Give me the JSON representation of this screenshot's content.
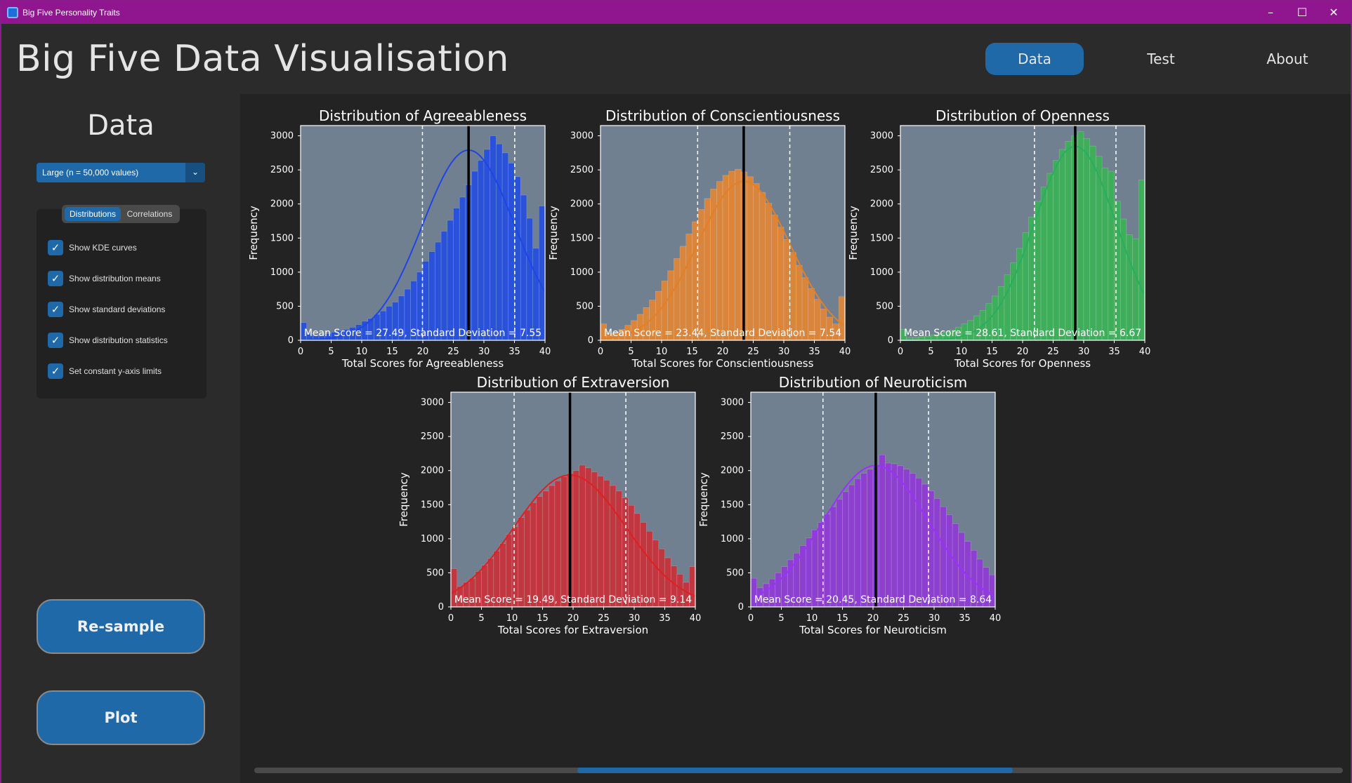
{
  "window": {
    "title": "Big Five Personality Traits",
    "minimize": "–",
    "maximize": "☐",
    "close": "✕"
  },
  "header": {
    "title": "Big Five Data Visualisation",
    "nav": [
      "Data",
      "Test",
      "About"
    ]
  },
  "sidebar": {
    "title": "Data",
    "sample_select": "Large  (n = 50,000 values)",
    "tabs": [
      "Distributions",
      "Correlations"
    ],
    "options": [
      {
        "label": "Show KDE curves",
        "checked": true
      },
      {
        "label": "Show distribution means",
        "checked": true
      },
      {
        "label": "Show standard deviations",
        "checked": true
      },
      {
        "label": "Show distribution statistics",
        "checked": true
      },
      {
        "label": "Set constant y-axis limits",
        "checked": true
      }
    ],
    "resample_label": "Re-sample",
    "plot_label": "Plot"
  },
  "colors": {
    "accent": "#1f69a8",
    "plot_bg": "#708090"
  },
  "chart_data": [
    {
      "type": "bar",
      "title": "Distribution of Agreeableness",
      "xlabel": "Total Scores for Agreeableness",
      "ylabel": "Frequency",
      "xlim": [
        0,
        40
      ],
      "ylim": [
        0,
        3150
      ],
      "xticks": [
        0,
        5,
        10,
        15,
        20,
        25,
        30,
        35,
        40
      ],
      "yticks": [
        0,
        500,
        1000,
        1500,
        2000,
        2500,
        3000
      ],
      "color": "#2952d9",
      "kde_color": "#1f45e6",
      "mean": 27.49,
      "sd": 7.55,
      "stats_label": "Mean Score = 27.49,   Standard Deviation = 7.55",
      "values": [
        260,
        90,
        70,
        80,
        100,
        120,
        140,
        160,
        190,
        230,
        280,
        320,
        380,
        430,
        500,
        560,
        650,
        750,
        870,
        1000,
        1160,
        1300,
        1440,
        1600,
        1760,
        1940,
        2100,
        2280,
        2480,
        2640,
        2800,
        3000,
        2880,
        2750,
        2600,
        2400,
        2130,
        1790,
        1350,
        1970
      ]
    },
    {
      "type": "bar",
      "title": "Distribution of Conscientiousness",
      "xlabel": "Total Scores for Conscientiousness",
      "ylabel": "Frequency",
      "xlim": [
        0,
        40
      ],
      "ylim": [
        0,
        3150
      ],
      "xticks": [
        0,
        5,
        10,
        15,
        20,
        25,
        30,
        35,
        40
      ],
      "yticks": [
        0,
        500,
        1000,
        1500,
        2000,
        2500,
        3000
      ],
      "color": "#d9853b",
      "kde_color": "#e67e22",
      "mean": 23.44,
      "sd": 7.54,
      "stats_label": "Mean Score = 23.44,   Standard Deviation = 7.54",
      "values": [
        240,
        100,
        120,
        160,
        220,
        290,
        380,
        480,
        590,
        720,
        870,
        1020,
        1200,
        1380,
        1560,
        1740,
        1920,
        2080,
        2220,
        2330,
        2420,
        2480,
        2510,
        2470,
        2400,
        2300,
        2170,
        2010,
        1840,
        1660,
        1480,
        1290,
        1100,
        920,
        760,
        600,
        460,
        340,
        240,
        640
      ]
    },
    {
      "type": "bar",
      "title": "Distribution of Openness",
      "xlabel": "Total Scores for Openness",
      "ylabel": "Frequency",
      "xlim": [
        0,
        40
      ],
      "ylim": [
        0,
        3150
      ],
      "xticks": [
        0,
        5,
        10,
        15,
        20,
        25,
        30,
        35,
        40
      ],
      "yticks": [
        0,
        500,
        1000,
        1500,
        2000,
        2500,
        3000
      ],
      "color": "#3fae5a",
      "kde_color": "#27ae60",
      "mean": 28.61,
      "sd": 6.67,
      "stats_label": "Mean Score = 28.61,   Standard Deviation = 6.67",
      "values": [
        160,
        40,
        40,
        50,
        60,
        80,
        100,
        120,
        150,
        190,
        240,
        290,
        360,
        440,
        540,
        650,
        790,
        960,
        1140,
        1350,
        1580,
        1810,
        2040,
        2250,
        2450,
        2640,
        2800,
        2920,
        3000,
        3060,
        2960,
        2850,
        2700,
        2530,
        2480,
        2040,
        1780,
        1550,
        1490,
        2350
      ]
    },
    {
      "type": "bar",
      "title": "Distribution of Extraversion",
      "xlabel": "Total Scores for Extraversion",
      "ylabel": "Frequency",
      "xlim": [
        0,
        40
      ],
      "ylim": [
        0,
        3150
      ],
      "xticks": [
        0,
        5,
        10,
        15,
        20,
        25,
        30,
        35,
        40
      ],
      "yticks": [
        0,
        500,
        1000,
        1500,
        2000,
        2500,
        3000
      ],
      "color": "#c2363f",
      "kde_color": "#e02020",
      "mean": 19.49,
      "sd": 9.14,
      "stats_label": "Mean Score = 19.49,   Standard Deviation = 9.14",
      "values": [
        560,
        300,
        360,
        420,
        520,
        610,
        710,
        820,
        930,
        1060,
        1180,
        1310,
        1420,
        1530,
        1620,
        1700,
        1780,
        1850,
        1910,
        1960,
        2000,
        2080,
        2040,
        1980,
        1920,
        1860,
        1780,
        1700,
        1600,
        1490,
        1370,
        1240,
        1110,
        980,
        850,
        720,
        600,
        480,
        360,
        590
      ]
    },
    {
      "type": "bar",
      "title": "Distribution of Neuroticism",
      "xlabel": "Total Scores for Neuroticism",
      "ylabel": "Frequency",
      "xlim": [
        0,
        40
      ],
      "ylim": [
        0,
        3150
      ],
      "xticks": [
        0,
        5,
        10,
        15,
        20,
        25,
        30,
        35,
        40
      ],
      "yticks": [
        0,
        500,
        1000,
        1500,
        2000,
        2500,
        3000
      ],
      "color": "#8d3fd0",
      "kde_color": "#9b30ff",
      "mean": 20.45,
      "sd": 8.64,
      "stats_label": "Mean Score = 20.45,   Standard Deviation = 8.64",
      "values": [
        420,
        280,
        340,
        410,
        500,
        590,
        690,
        790,
        900,
        1010,
        1130,
        1240,
        1360,
        1470,
        1580,
        1690,
        1790,
        1880,
        1960,
        2020,
        2070,
        2230,
        2110,
        2100,
        2070,
        2020,
        1960,
        1890,
        1800,
        1700,
        1590,
        1470,
        1350,
        1220,
        1090,
        960,
        830,
        700,
        580,
        470
      ]
    }
  ]
}
